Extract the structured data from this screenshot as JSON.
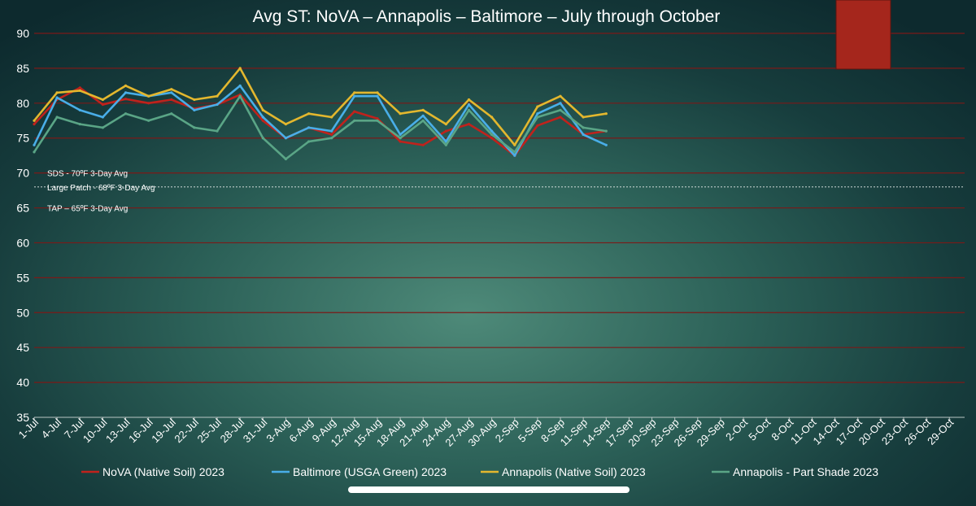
{
  "chart_data": {
    "type": "line",
    "title": "Avg ST: NoVA – Annapolis – Baltimore – July through October",
    "ylim": [
      35,
      90
    ],
    "yticks": [
      35,
      40,
      45,
      50,
      55,
      60,
      65,
      70,
      75,
      80,
      85,
      90
    ],
    "grid": true,
    "legend_position": "bottom",
    "x_labels": [
      "1-Jul",
      "4-Jul",
      "7-Jul",
      "10-Jul",
      "13-Jul",
      "16-Jul",
      "19-Jul",
      "22-Jul",
      "25-Jul",
      "28-Jul",
      "31-Jul",
      "3-Aug",
      "6-Aug",
      "9-Aug",
      "12-Aug",
      "15-Aug",
      "18-Aug",
      "21-Aug",
      "24-Aug",
      "27-Aug",
      "30-Aug",
      "2-Sep",
      "5-Sep",
      "8-Sep",
      "11-Sep",
      "14-Sep",
      "17-Sep",
      "20-Sep",
      "23-Sep",
      "26-Sep",
      "29-Sep",
      "2-Oct",
      "5-Oct",
      "8-Oct",
      "11-Oct",
      "14-Oct",
      "17-Oct",
      "20-Oct",
      "23-Oct",
      "26-Oct",
      "29-Oct"
    ],
    "reference_lines": [
      {
        "label": "SDS - 70ºF 3-Day Avg",
        "value": 70,
        "line": false
      },
      {
        "label": "Large Patch - 68ºF 3-Day Avg",
        "value": 68,
        "line": true
      },
      {
        "label": "TAP – 65ºF 3-Day Avg",
        "value": 65,
        "line": false
      }
    ],
    "x": [
      "2023-07-01",
      "2023-07-04",
      "2023-07-07",
      "2023-07-10",
      "2023-07-13",
      "2023-07-16",
      "2023-07-19",
      "2023-07-22",
      "2023-07-25",
      "2023-07-28",
      "2023-07-31",
      "2023-08-03",
      "2023-08-06",
      "2023-08-09",
      "2023-08-12",
      "2023-08-15",
      "2023-08-18",
      "2023-08-21",
      "2023-08-24",
      "2023-08-27",
      "2023-08-30",
      "2023-09-02",
      "2023-09-05",
      "2023-09-08",
      "2023-09-11",
      "2023-09-14"
    ],
    "series": [
      {
        "name": "NoVA (Native Soil) 2023",
        "color": "#c0221c",
        "values": [
          77.0,
          80.5,
          82.2,
          79.8,
          80.6,
          80.0,
          80.5,
          79.2,
          79.8,
          81.2,
          77.5,
          75.0,
          76.5,
          75.5,
          78.8,
          77.8,
          74.5,
          74.0,
          76.0,
          77.0,
          75.0,
          72.5,
          76.8,
          78.0,
          75.5,
          76.0
        ]
      },
      {
        "name": "Baltimore (USGA Green) 2023",
        "color": "#49aee8",
        "values": [
          74.0,
          80.8,
          79.0,
          78.0,
          81.5,
          81.0,
          81.5,
          79.0,
          79.8,
          82.5,
          78.0,
          75.0,
          76.5,
          76.0,
          81.0,
          81.0,
          75.5,
          78.2,
          74.5,
          79.8,
          76.0,
          72.5,
          78.5,
          80.0,
          75.5,
          74.0
        ]
      },
      {
        "name": "Annapolis (Native Soil) 2023",
        "color": "#e3b72e",
        "values": [
          77.5,
          81.5,
          81.8,
          80.5,
          82.5,
          81.0,
          82.0,
          80.5,
          81.0,
          85.0,
          79.0,
          77.0,
          78.5,
          78.0,
          81.5,
          81.5,
          78.5,
          79.0,
          77.0,
          80.5,
          78.0,
          74.0,
          79.5,
          81.0,
          78.0,
          78.5
        ]
      },
      {
        "name": "Annapolis - Part Shade 2023",
        "color": "#5aa586",
        "values": [
          73.0,
          78.0,
          77.0,
          76.5,
          78.5,
          77.5,
          78.5,
          76.5,
          76.0,
          81.0,
          75.0,
          72.0,
          74.5,
          75.0,
          77.5,
          77.5,
          75.0,
          77.5,
          74.0,
          79.0,
          75.5,
          73.0,
          78.0,
          79.0,
          76.5,
          76.0
        ]
      }
    ]
  },
  "overlay": {
    "color": "#a5261c"
  }
}
